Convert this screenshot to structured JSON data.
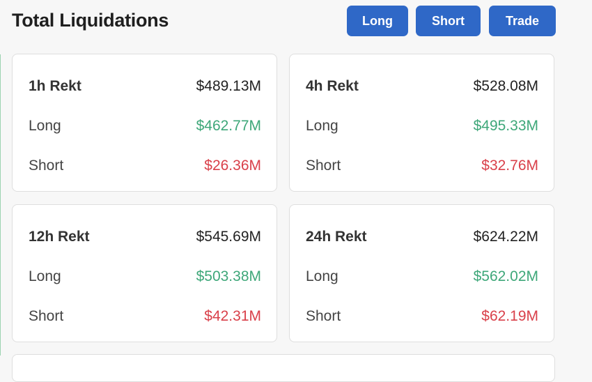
{
  "header": {
    "title": "Total Liquidations",
    "buttons": {
      "long": "Long",
      "short": "Short",
      "trade": "Trade"
    }
  },
  "colors": {
    "accent_button": "#2f68c7",
    "long_value": "#3ea779",
    "short_value": "#d9404a"
  },
  "cards": [
    {
      "period_label": "1h Rekt",
      "total": "$489.13M",
      "long_label": "Long",
      "long_value": "$462.77M",
      "short_label": "Short",
      "short_value": "$26.36M"
    },
    {
      "period_label": "4h Rekt",
      "total": "$528.08M",
      "long_label": "Long",
      "long_value": "$495.33M",
      "short_label": "Short",
      "short_value": "$32.76M"
    },
    {
      "period_label": "12h Rekt",
      "total": "$545.69M",
      "long_label": "Long",
      "long_value": "$503.38M",
      "short_label": "Short",
      "short_value": "$42.31M"
    },
    {
      "period_label": "24h Rekt",
      "total": "$624.22M",
      "long_label": "Long",
      "long_value": "$562.02M",
      "short_label": "Short",
      "short_value": "$62.19M"
    }
  ]
}
